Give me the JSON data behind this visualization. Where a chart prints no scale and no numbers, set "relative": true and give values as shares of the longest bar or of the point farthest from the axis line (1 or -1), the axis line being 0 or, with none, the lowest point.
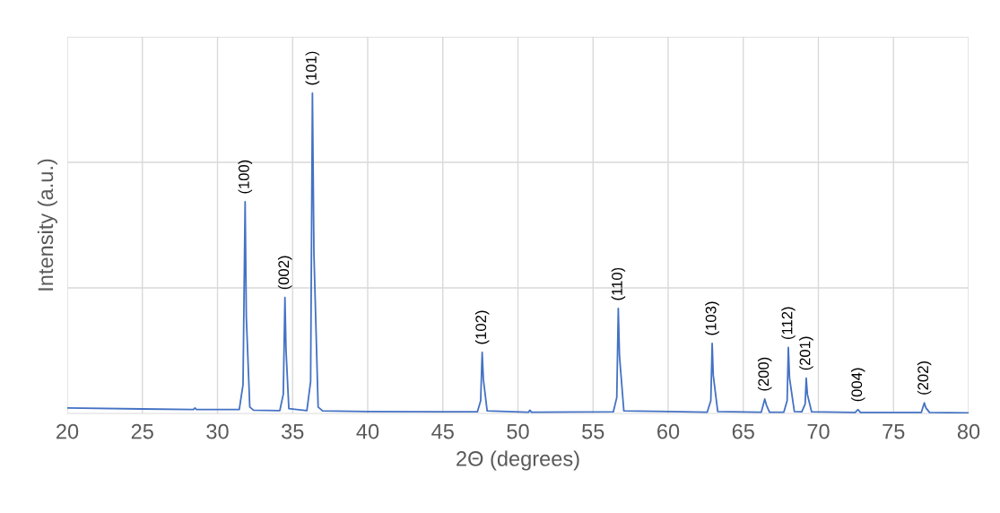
{
  "chart_data": {
    "type": "line",
    "relative": true,
    "xlabel": "2Θ (degrees)",
    "ylabel": "Intensity (a.u.)",
    "xlim": [
      20,
      80
    ],
    "xticks": [
      20,
      25,
      30,
      35,
      40,
      45,
      50,
      55,
      60,
      65,
      70,
      75,
      80
    ],
    "grid": true,
    "legend": false,
    "marker": "none",
    "line_style": "solid",
    "series": [
      {
        "color": "#4472c4",
        "x": [
          20,
          25,
          28.4,
          28.5,
          28.6,
          31.45,
          31.7,
          31.84,
          31.92,
          32.15,
          32.4,
          34.15,
          34.38,
          34.49,
          34.56,
          34.75,
          35.95,
          36.2,
          36.32,
          36.42,
          36.7,
          37.0,
          40,
          45,
          47.3,
          47.52,
          47.62,
          47.7,
          47.95,
          50.7,
          50.8,
          50.9,
          56.35,
          56.58,
          56.68,
          56.76,
          57.05,
          62.6,
          62.84,
          62.93,
          63.0,
          63.3,
          66.2,
          66.43,
          66.55,
          66.75,
          67.7,
          67.92,
          68.0,
          68.08,
          68.4,
          68.9,
          69.12,
          69.19,
          69.27,
          69.55,
          72.45,
          72.64,
          72.8,
          76.85,
          77.05,
          77.15,
          77.4,
          80
        ],
        "values": [
          0.017,
          0.014,
          0.012,
          0.017,
          0.012,
          0.012,
          0.09,
          0.661,
          0.3,
          0.02,
          0.01,
          0.009,
          0.06,
          0.362,
          0.2,
          0.015,
          0.009,
          0.1,
          1,
          0.5,
          0.02,
          0.008,
          0.006,
          0.005,
          0.005,
          0.04,
          0.191,
          0.106,
          0.008,
          0.004,
          0.01,
          0.004,
          0.005,
          0.05,
          0.328,
          0.18,
          0.008,
          0.004,
          0.04,
          0.219,
          0.12,
          0.006,
          0.004,
          0.045,
          0.025,
          0.004,
          0.004,
          0.04,
          0.206,
          0.11,
          0.006,
          0.005,
          0.03,
          0.11,
          0.059,
          0.005,
          0.003,
          0.012,
          0.003,
          0.003,
          0.033,
          0.018,
          0.003,
          0.002
        ]
      }
    ],
    "annotations": [
      {
        "text": "(100)",
        "x": 31.84,
        "y": 0.661
      },
      {
        "text": "(002)",
        "x": 34.49,
        "y": 0.362
      },
      {
        "text": "(101)",
        "x": 36.32,
        "y": 1
      },
      {
        "text": "(102)",
        "x": 47.62,
        "y": 0.191
      },
      {
        "text": "(110)",
        "x": 56.68,
        "y": 0.328
      },
      {
        "text": "(103)",
        "x": 62.93,
        "y": 0.219
      },
      {
        "text": "(200)",
        "x": 66.43,
        "y": 0.045
      },
      {
        "text": "(112)",
        "x": 68.0,
        "y": 0.206
      },
      {
        "text": "(201)",
        "x": 69.19,
        "y": 0.11
      },
      {
        "text": "(004)",
        "x": 72.64,
        "y": 0.012
      },
      {
        "text": "(202)",
        "x": 77.05,
        "y": 0.033
      }
    ]
  }
}
